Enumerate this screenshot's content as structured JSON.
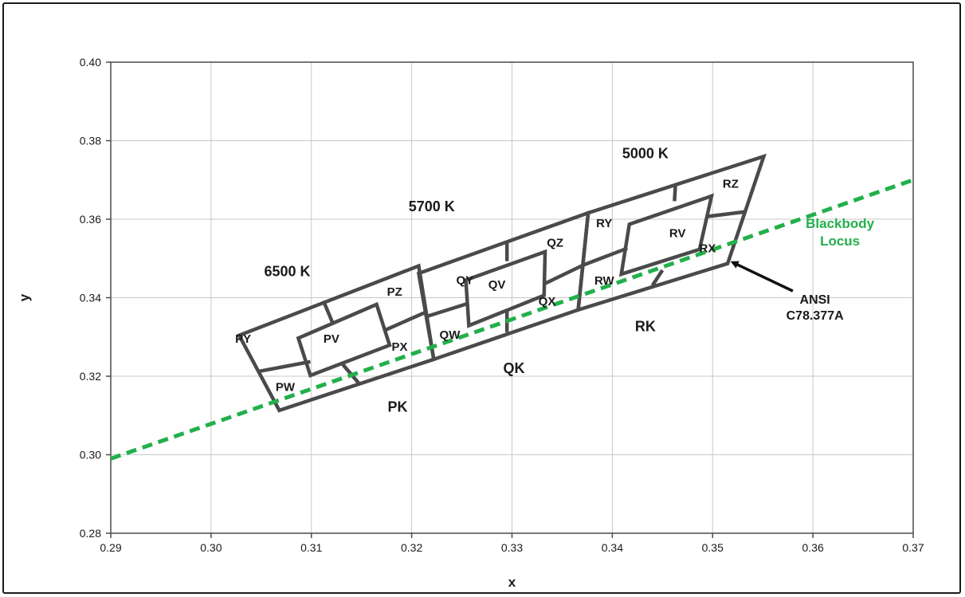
{
  "chart_data": {
    "type": "scatter",
    "xlabel": "x",
    "ylabel": "y",
    "xlim": [
      0.29,
      0.37
    ],
    "ylim": [
      0.28,
      0.4
    ],
    "x_ticks": [
      "0.29",
      "0.30",
      "0.31",
      "0.32",
      "0.33",
      "0.34",
      "0.35",
      "0.36",
      "0.37"
    ],
    "y_ticks": [
      "0.28",
      "0.30",
      "0.32",
      "0.34",
      "0.36",
      "0.38",
      "0.40"
    ],
    "grid": true,
    "colors": {
      "locus": "#22b04b",
      "outline": "#4a4a4a",
      "grid": "#c8c8c8",
      "text": "#1a1a1a"
    },
    "quadrangles": [
      {
        "name": "6500 K",
        "points": [
          [
            0.3028,
            0.3304
          ],
          [
            0.3207,
            0.3481
          ],
          [
            0.3222,
            0.3243
          ],
          [
            0.3068,
            0.3113
          ]
        ]
      },
      {
        "name": "5700 K",
        "points": [
          [
            0.3207,
            0.3462
          ],
          [
            0.3376,
            0.3616
          ],
          [
            0.3366,
            0.3369
          ],
          [
            0.3222,
            0.3243
          ]
        ]
      },
      {
        "name": "5000 K",
        "points": [
          [
            0.3376,
            0.3616
          ],
          [
            0.3551,
            0.376
          ],
          [
            0.3515,
            0.3487
          ],
          [
            0.3366,
            0.3369
          ]
        ]
      }
    ],
    "inner_quads": [
      {
        "name": "PV",
        "points": [
          [
            0.3087,
            0.3297
          ],
          [
            0.3165,
            0.3383
          ],
          [
            0.3178,
            0.3279
          ],
          [
            0.3099,
            0.3202
          ]
        ]
      },
      {
        "name": "QV",
        "points": [
          [
            0.3254,
            0.3445
          ],
          [
            0.3333,
            0.3517
          ],
          [
            0.3332,
            0.3406
          ],
          [
            0.3257,
            0.3329
          ]
        ]
      },
      {
        "name": "RV",
        "points": [
          [
            0.3417,
            0.3587
          ],
          [
            0.3499,
            0.3659
          ],
          [
            0.3487,
            0.3523
          ],
          [
            0.3409,
            0.346
          ]
        ]
      }
    ],
    "divider_lines": [
      [
        [
          0.3112,
          0.3392
        ],
        [
          0.3122,
          0.3331
        ]
      ],
      [
        [
          0.3047,
          0.3212
        ],
        [
          0.3099,
          0.3237
        ]
      ],
      [
        [
          0.3131,
          0.3231
        ],
        [
          0.3147,
          0.3183
        ]
      ],
      [
        [
          0.3173,
          0.3317
        ],
        [
          0.3214,
          0.3363
        ]
      ],
      [
        [
          0.3295,
          0.354
        ],
        [
          0.3295,
          0.3493
        ]
      ],
      [
        [
          0.3216,
          0.3353
        ],
        [
          0.3257,
          0.3386
        ]
      ],
      [
        [
          0.3295,
          0.3367
        ],
        [
          0.3295,
          0.3312
        ]
      ],
      [
        [
          0.3332,
          0.3435
        ],
        [
          0.3371,
          0.3483
        ]
      ],
      [
        [
          0.3463,
          0.3689
        ],
        [
          0.3462,
          0.3646
        ]
      ],
      [
        [
          0.3371,
          0.3483
        ],
        [
          0.3415,
          0.3526
        ]
      ],
      [
        [
          0.344,
          0.3431
        ],
        [
          0.345,
          0.347
        ]
      ],
      [
        [
          0.3495,
          0.3607
        ],
        [
          0.3533,
          0.3619
        ]
      ]
    ],
    "blackbody_locus": {
      "name": "Blackbody Locus",
      "x": [
        0.29,
        0.37
      ],
      "y": [
        0.299,
        0.37
      ]
    },
    "bin_labels": [
      {
        "text": "PY",
        "x": 0.3032,
        "y": 0.3285
      },
      {
        "text": "PV",
        "x": 0.312,
        "y": 0.3285
      },
      {
        "text": "PZ",
        "x": 0.3183,
        "y": 0.3405
      },
      {
        "text": "PX",
        "x": 0.3188,
        "y": 0.3265
      },
      {
        "text": "PW",
        "x": 0.3074,
        "y": 0.3162
      },
      {
        "text": "QY",
        "x": 0.3253,
        "y": 0.3435
      },
      {
        "text": "QV",
        "x": 0.3285,
        "y": 0.3423
      },
      {
        "text": "QZ",
        "x": 0.3343,
        "y": 0.353
      },
      {
        "text": "QX",
        "x": 0.3335,
        "y": 0.3381
      },
      {
        "text": "QW",
        "x": 0.3238,
        "y": 0.3295
      },
      {
        "text": "RY",
        "x": 0.3392,
        "y": 0.358
      },
      {
        "text": "RV",
        "x": 0.3465,
        "y": 0.3554
      },
      {
        "text": "RZ",
        "x": 0.3518,
        "y": 0.368
      },
      {
        "text": "RX",
        "x": 0.3495,
        "y": 0.3516
      },
      {
        "text": "RW",
        "x": 0.3392,
        "y": 0.3433
      }
    ],
    "region_labels": [
      {
        "text": "PK",
        "x": 0.3186,
        "y": 0.311
      },
      {
        "text": "QK",
        "x": 0.3302,
        "y": 0.3208
      },
      {
        "text": "RK",
        "x": 0.3433,
        "y": 0.3315
      }
    ],
    "cct_labels": [
      {
        "text": "6500 K",
        "x": 0.3076,
        "y": 0.3455
      },
      {
        "text": "5700 K",
        "x": 0.322,
        "y": 0.362
      },
      {
        "text": "5000 K",
        "x": 0.3433,
        "y": 0.3755
      }
    ],
    "annotation": {
      "lines": [
        "ANSI",
        "C78.377A"
      ],
      "text_x": 0.3602,
      "text_y": 0.3385,
      "arrow_from": [
        0.358,
        0.3417
      ],
      "arrow_to": [
        0.352,
        0.349
      ]
    },
    "locus_label": {
      "lines": [
        "Blackbody",
        "Locus"
      ],
      "x": 0.3627,
      "y": 0.3578
    }
  }
}
